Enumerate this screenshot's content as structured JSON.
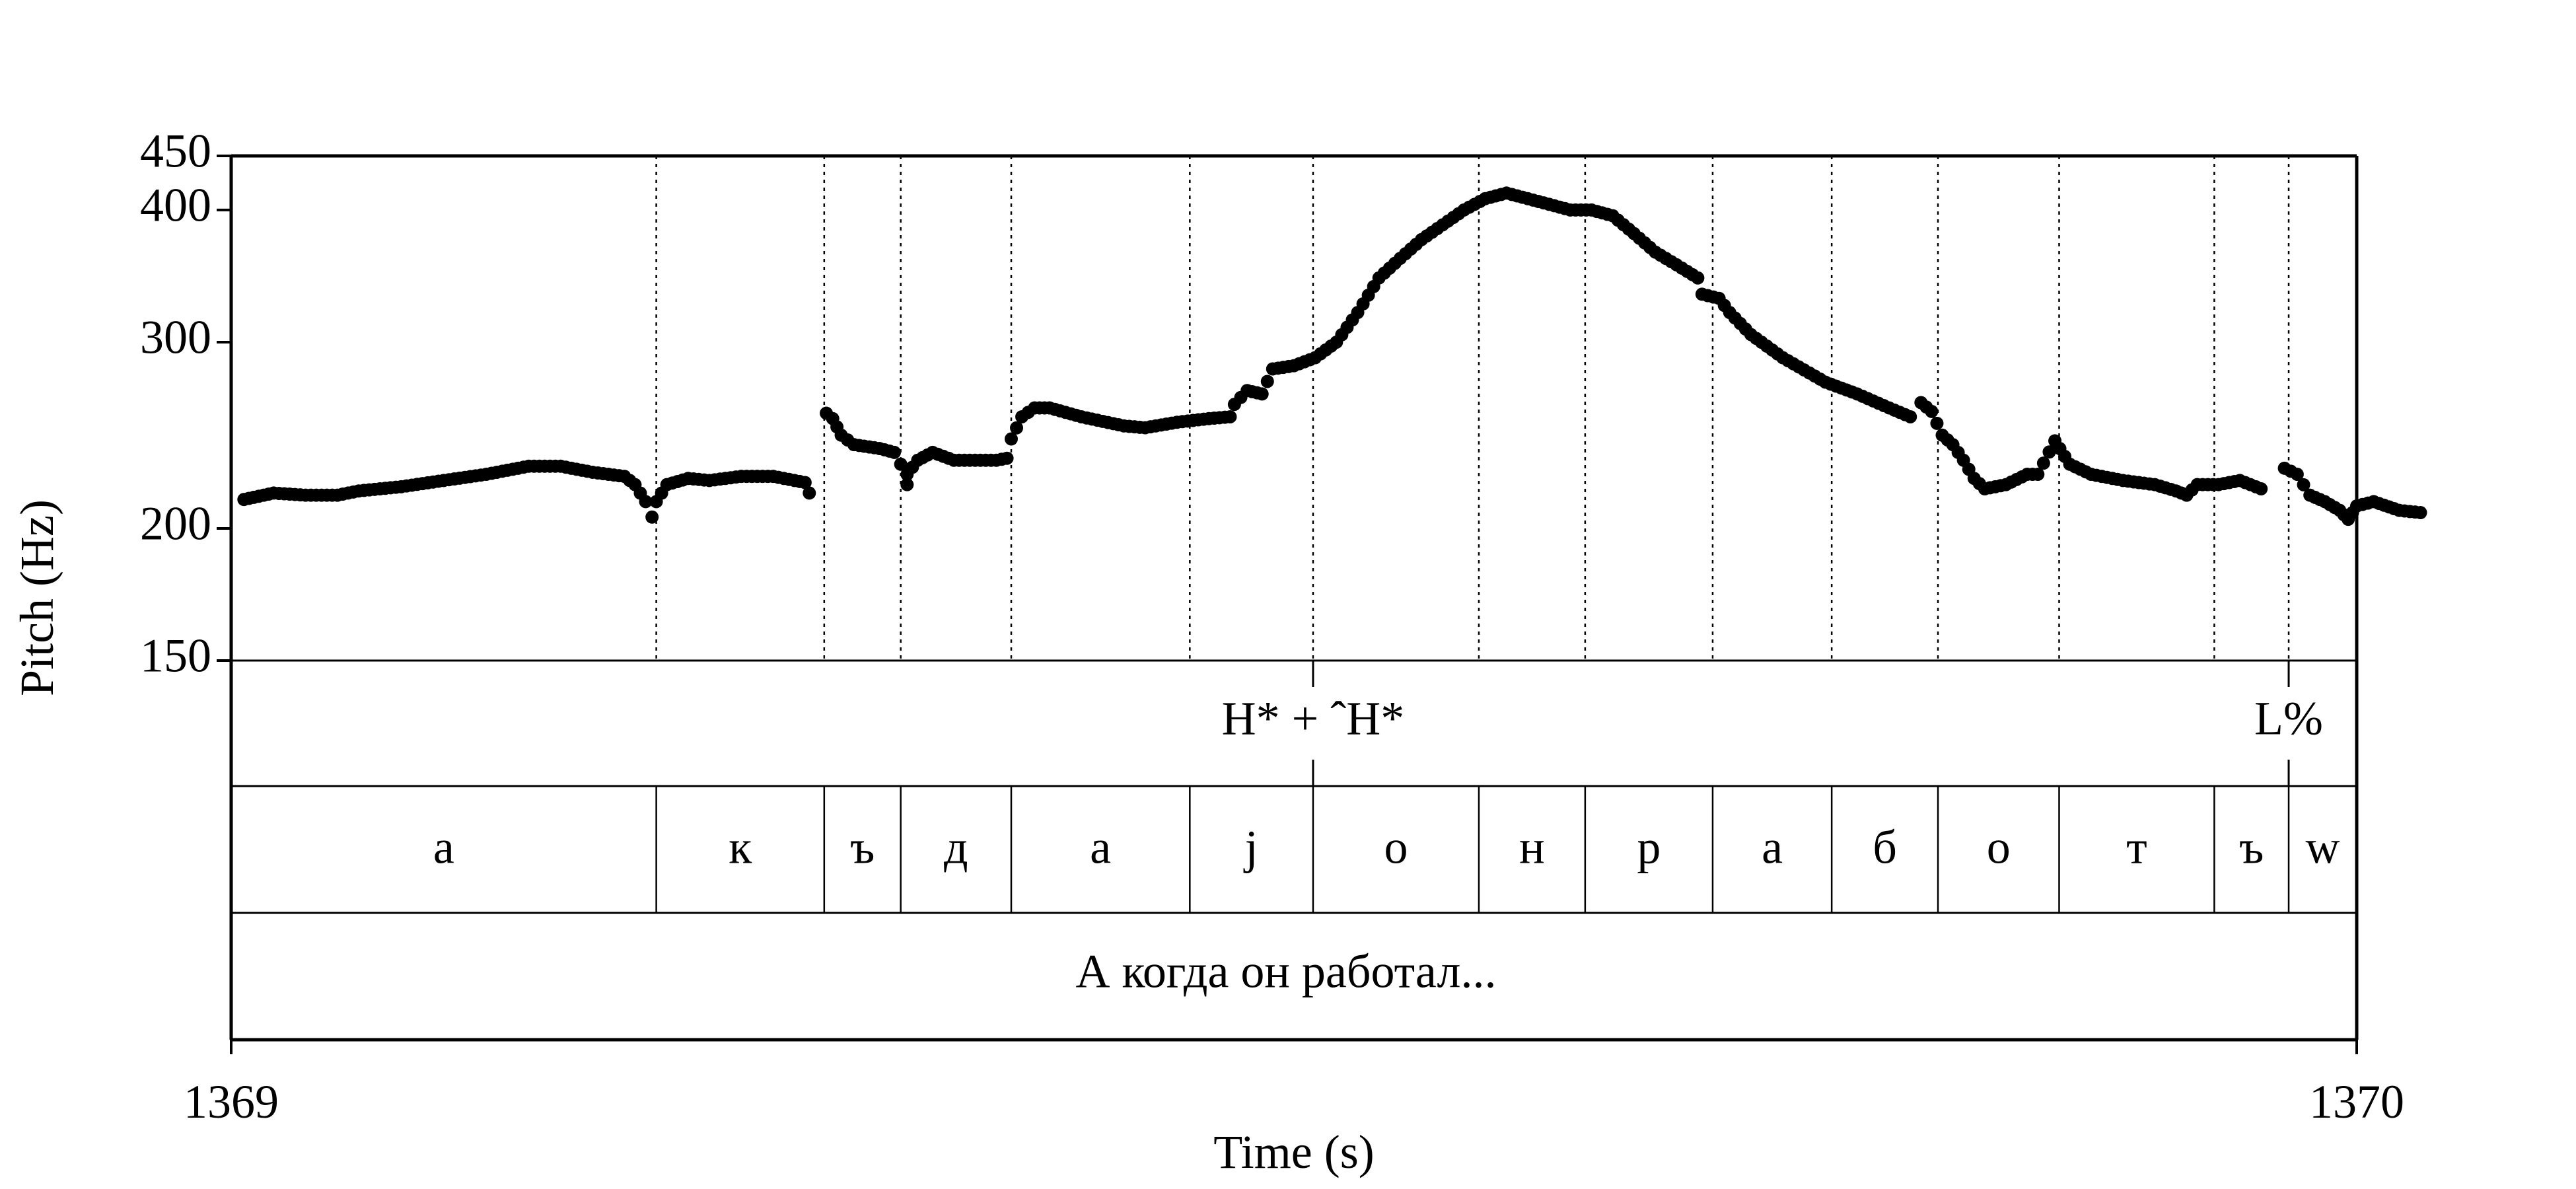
{
  "chart_data": {
    "type": "scatter",
    "ylabel": "Pitch (Hz)",
    "xlabel": "Time (s)",
    "xlim": [
      1369,
      1370
    ],
    "ylim": [
      150,
      450
    ],
    "y_scale": "log",
    "y_ticks": [
      150,
      200,
      300,
      400,
      450
    ],
    "x_ticks": [
      1369,
      1370
    ],
    "grid": false,
    "boundaries": [
      1369.2,
      1369.279,
      1369.315,
      1369.367,
      1369.451,
      1369.509,
      1369.587,
      1369.637,
      1369.697,
      1369.753,
      1369.803,
      1369.86,
      1369.933,
      1369.968
    ],
    "segments": [
      {
        "label": "а",
        "start": 1369.0,
        "end": 1369.2
      },
      {
        "label": "к",
        "start": 1369.2,
        "end": 1369.279
      },
      {
        "label": "ъ",
        "start": 1369.279,
        "end": 1369.315
      },
      {
        "label": "д",
        "start": 1369.315,
        "end": 1369.367
      },
      {
        "label": "а",
        "start": 1369.367,
        "end": 1369.451
      },
      {
        "label": "j",
        "start": 1369.451,
        "end": 1369.509
      },
      {
        "label": "о",
        "start": 1369.509,
        "end": 1369.587
      },
      {
        "label": "н",
        "start": 1369.587,
        "end": 1369.637
      },
      {
        "label": "р",
        "start": 1369.637,
        "end": 1369.697
      },
      {
        "label": "а",
        "start": 1369.697,
        "end": 1369.753
      },
      {
        "label": "б",
        "start": 1369.753,
        "end": 1369.803
      },
      {
        "label": "о",
        "start": 1369.803,
        "end": 1369.86
      },
      {
        "label": "т",
        "start": 1369.86,
        "end": 1369.933
      },
      {
        "label": "ъ",
        "start": 1369.933,
        "end": 1369.968
      },
      {
        "label": "w",
        "start": 1369.968,
        "end": 1370.0
      }
    ],
    "tones": [
      {
        "label": "H* + ˆH*",
        "time": 1369.509
      },
      {
        "label": "L%",
        "time": 1369.968
      }
    ],
    "sentence": "А когда он работал...",
    "pitch_runs": [
      [
        [
          1369.006,
          213
        ],
        [
          1369.02,
          216
        ],
        [
          1369.035,
          215
        ],
        [
          1369.05,
          215
        ],
        [
          1369.06,
          217
        ],
        [
          1369.08,
          219
        ],
        [
          1369.1,
          222
        ],
        [
          1369.12,
          225
        ],
        [
          1369.14,
          229
        ],
        [
          1369.155,
          229
        ],
        [
          1369.17,
          226
        ],
        [
          1369.185,
          224
        ],
        [
          1369.19,
          220
        ],
        [
          1369.195,
          212
        ],
        [
          1369.198,
          205
        ]
      ],
      [
        [
          1369.2,
          212
        ],
        [
          1369.205,
          220
        ],
        [
          1369.215,
          223
        ],
        [
          1369.225,
          222
        ],
        [
          1369.24,
          224
        ],
        [
          1369.255,
          224
        ],
        [
          1369.265,
          222
        ],
        [
          1369.27,
          221
        ],
        [
          1369.272,
          216
        ]
      ],
      [
        [
          1369.28,
          257
        ],
        [
          1369.283,
          254
        ],
        [
          1369.287,
          245
        ],
        [
          1369.293,
          240
        ],
        [
          1369.305,
          238
        ],
        [
          1369.312,
          236
        ],
        [
          1369.315,
          230
        ],
        [
          1369.318,
          220
        ]
      ],
      [
        [
          1369.318,
          225
        ],
        [
          1369.323,
          232
        ],
        [
          1369.33,
          236
        ],
        [
          1369.34,
          232
        ],
        [
          1369.35,
          232
        ],
        [
          1369.36,
          232
        ],
        [
          1369.365,
          233
        ]
      ],
      [
        [
          1369.367,
          243
        ],
        [
          1369.372,
          255
        ],
        [
          1369.378,
          260
        ],
        [
          1369.385,
          260
        ],
        [
          1369.4,
          255
        ],
        [
          1369.42,
          250
        ],
        [
          1369.43,
          249
        ],
        [
          1369.445,
          252
        ],
        [
          1369.46,
          254
        ],
        [
          1369.47,
          255
        ]
      ],
      [
        [
          1369.472,
          262
        ],
        [
          1369.478,
          270
        ],
        [
          1369.485,
          268
        ],
        [
          1369.49,
          283
        ],
        [
          1369.5,
          285
        ],
        [
          1369.51,
          290
        ],
        [
          1369.52,
          300
        ],
        [
          1369.53,
          320
        ],
        [
          1369.54,
          345
        ],
        [
          1369.55,
          360
        ],
        [
          1369.56,
          375
        ],
        [
          1369.58,
          400
        ],
        [
          1369.59,
          410
        ],
        [
          1369.6,
          415
        ],
        [
          1369.61,
          410
        ],
        [
          1369.62,
          405
        ],
        [
          1369.63,
          400
        ],
        [
          1369.64,
          400
        ],
        [
          1369.65,
          395
        ],
        [
          1369.66,
          380
        ],
        [
          1369.67,
          365
        ],
        [
          1369.68,
          355
        ],
        [
          1369.69,
          345
        ]
      ],
      [
        [
          1369.692,
          333
        ],
        [
          1369.7,
          330
        ],
        [
          1369.705,
          320
        ],
        [
          1369.715,
          305
        ],
        [
          1369.73,
          290
        ],
        [
          1369.75,
          275
        ],
        [
          1369.765,
          268
        ],
        [
          1369.78,
          260
        ],
        [
          1369.79,
          255
        ]
      ],
      [
        [
          1369.795,
          263
        ],
        [
          1369.8,
          258
        ],
        [
          1369.805,
          245
        ],
        [
          1369.81,
          240
        ],
        [
          1369.815,
          232
        ],
        [
          1369.82,
          223
        ],
        [
          1369.825,
          218
        ],
        [
          1369.835,
          220
        ],
        [
          1369.845,
          225
        ],
        [
          1369.85,
          225
        ],
        [
          1369.858,
          242
        ],
        [
          1369.865,
          230
        ],
        [
          1369.875,
          225
        ],
        [
          1369.89,
          222
        ],
        [
          1369.905,
          220
        ],
        [
          1369.915,
          217
        ],
        [
          1369.92,
          215
        ],
        [
          1369.925,
          220
        ],
        [
          1369.935,
          220
        ],
        [
          1369.945,
          222
        ],
        [
          1369.955,
          218
        ]
      ],
      [
        [
          1369.966,
          228
        ],
        [
          1369.972,
          225
        ],
        [
          1369.978,
          215
        ],
        [
          1369.985,
          212
        ],
        [
          1369.992,
          208
        ],
        [
          1369.996,
          204
        ],
        [
          1370.0,
          210
        ],
        [
          1370.008,
          212
        ],
        [
          1370.02,
          208
        ],
        [
          1370.03,
          207
        ]
      ]
    ]
  }
}
